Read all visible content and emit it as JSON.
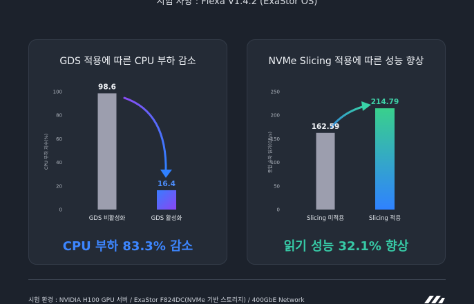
{
  "top_title": "시험 사양 : Flexa V1.4.2 (ExaStor OS)",
  "footnote": "시험 환경 : NVIDIA H100 GPU 서버 / ExaStor F824DC(NVMe 기반 스토리지) / 400GbE Network",
  "colors": {
    "background": "#1c222c",
    "panel": "#242b36",
    "bar_baseline": "#9c9eae",
    "accent_blue": "#3d86ff",
    "accent_green": "#37c9a6",
    "arrow_purple": "#8a4df5"
  },
  "chart_data": [
    {
      "type": "bar",
      "title": "GDS 적용에 따른 CPU 부하 감소",
      "ylabel": "CPU 부하 지수(%)",
      "categories": [
        "GDS 비활성화",
        "GDS 활성화"
      ],
      "values": [
        98.6,
        16.4
      ],
      "value_labels": [
        "98.6",
        "16.4"
      ],
      "ylim": [
        0,
        100
      ],
      "yticks": [
        0,
        20,
        40,
        60,
        80,
        100
      ],
      "grid": false,
      "headline": "CPU 부하 83.3% 감소"
    },
    {
      "type": "bar",
      "title": "NVMe Slicing 적용에 따른 성능 향상",
      "ylabel": "종합 순차 읽기(GB/s)",
      "categories": [
        "Slicing 미적용",
        "Slicing 적용"
      ],
      "values": [
        162.59,
        214.79
      ],
      "value_labels": [
        "162.59",
        "214.79"
      ],
      "ylim": [
        0,
        250
      ],
      "yticks": [
        0,
        50,
        100,
        150,
        200,
        250
      ],
      "grid": false,
      "headline": "읽기 성능 32.1% 향상"
    }
  ]
}
